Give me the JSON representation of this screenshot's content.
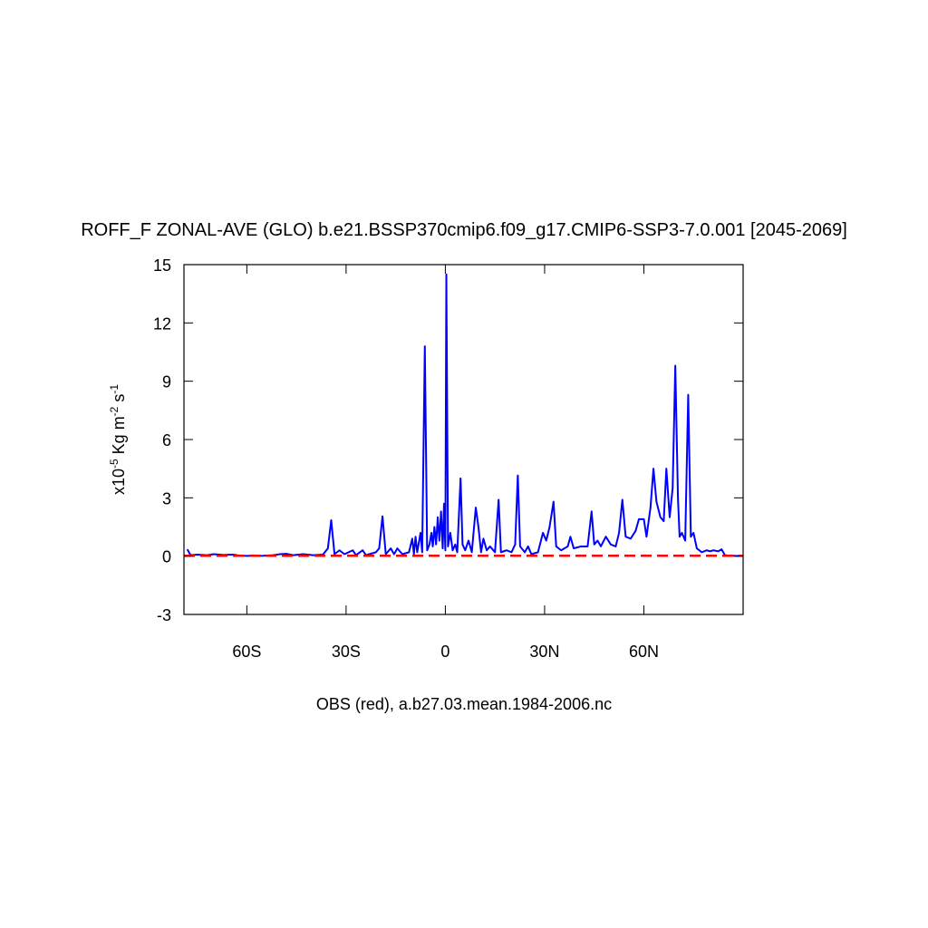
{
  "chart_data": {
    "type": "line",
    "title": "ROFF_F ZONAL-AVE (GLO) b.e21.BSSP370cmip6.f09_g17.CMIP6-SSP3-7.0.001 [2045-2069]",
    "subtitle": "OBS (red), a.b27.03.mean.1984-2006.nc",
    "ylabel": [
      "x10",
      "-5",
      " Kg m",
      "-2",
      " s",
      "-1"
    ],
    "xlim": [
      -79,
      90
    ],
    "xticks": [
      {
        "value": -60,
        "label": "60S"
      },
      {
        "value": -30,
        "label": "30S"
      },
      0,
      {
        "value": 30,
        "label": "30N"
      },
      {
        "value": 60,
        "label": "60N"
      }
    ],
    "ylim": [
      -3,
      15
    ],
    "yticks": [
      -3,
      0,
      3,
      6,
      9,
      12,
      15
    ],
    "series": [
      {
        "color": "#0000ff",
        "dash": false,
        "x": [
          -78,
          -77,
          -75,
          -72,
          -70,
          -67,
          -64,
          -62,
          -58,
          -55,
          -52,
          -50,
          -48,
          -46,
          -43,
          -40,
          -37,
          -35.5,
          -34.5,
          -33.5,
          -32,
          -30.5,
          -28,
          -27,
          -25,
          -24,
          -21,
          -20,
          -19,
          -18,
          -16.5,
          -15.5,
          -14.5,
          -13,
          -11,
          -10,
          -9.5,
          -9,
          -8.5,
          -7.5,
          -7,
          -6.2,
          -5.5,
          -4.8,
          -4.2,
          -3.8,
          -3.3,
          -2.8,
          -2.3,
          -1.8,
          -1.3,
          -0.8,
          -0.4,
          0,
          0.3,
          0.8,
          1.5,
          2.2,
          3,
          3.6,
          4.6,
          5.2,
          6,
          7,
          8,
          9.2,
          10,
          10.8,
          11.5,
          12.5,
          13.5,
          15,
          16.1,
          16.8,
          18.5,
          20,
          21.1,
          21.9,
          22.6,
          24,
          25,
          26,
          28,
          29.5,
          30.5,
          31.5,
          32.7,
          33.5,
          35,
          37,
          37.8,
          38.8,
          41,
          43,
          44.2,
          45,
          46,
          47,
          48.5,
          50,
          51.5,
          52.5,
          53.5,
          54.5,
          56,
          57.5,
          58.5,
          60,
          60.8,
          62,
          62.9,
          63.8,
          65,
          66,
          66.8,
          67.8,
          68.7,
          69.5,
          70.3,
          70.8,
          71.5,
          72.5,
          73.4,
          74.2,
          75,
          76,
          77.5,
          79,
          80,
          81,
          82.5,
          83.5,
          84.5,
          86,
          90
        ],
        "values": [
          0.35,
          0.05,
          0.08,
          0.05,
          0.1,
          0.06,
          0.08,
          0.02,
          0.01,
          0.02,
          0.05,
          0.1,
          0.12,
          0.05,
          0.1,
          0.05,
          0.08,
          0.4,
          1.85,
          0.1,
          0.3,
          0.1,
          0.3,
          0.05,
          0.3,
          0.05,
          0.2,
          0.4,
          2.05,
          0.1,
          0.4,
          0.1,
          0.4,
          0.1,
          0.2,
          0.9,
          0.1,
          1.0,
          0.2,
          1.2,
          0.2,
          10.8,
          0.3,
          0.6,
          1.2,
          0.5,
          1.5,
          0.6,
          2.0,
          0.8,
          2.3,
          0.4,
          2.7,
          0.3,
          14.5,
          0.5,
          1.2,
          0.3,
          0.6,
          0.2,
          4.0,
          0.6,
          0.3,
          0.8,
          0.2,
          2.5,
          1.5,
          0.2,
          0.9,
          0.3,
          0.5,
          0.2,
          2.9,
          0.2,
          0.3,
          0.2,
          0.6,
          4.15,
          0.5,
          0.2,
          0.5,
          0.1,
          0.2,
          1.2,
          0.8,
          1.5,
          2.8,
          0.5,
          0.3,
          0.5,
          1.0,
          0.4,
          0.5,
          0.5,
          2.3,
          0.6,
          0.8,
          0.5,
          1.0,
          0.6,
          0.5,
          1.2,
          2.9,
          1.0,
          0.9,
          1.3,
          1.9,
          1.9,
          1.0,
          2.5,
          4.5,
          2.8,
          2.0,
          1.8,
          4.5,
          2.0,
          3.5,
          9.8,
          3.0,
          1.0,
          1.2,
          0.8,
          8.3,
          1.0,
          1.2,
          0.4,
          0.2,
          0.3,
          0.25,
          0.3,
          0.25,
          0.35,
          0.05,
          0.02,
          0
        ]
      },
      {
        "color": "#ff0000",
        "dash": true,
        "x": [
          -79,
          -60,
          -30,
          0,
          30,
          60,
          90
        ],
        "values": [
          0.02,
          0.02,
          0.02,
          0.02,
          0.02,
          0.02,
          0.02
        ]
      }
    ]
  }
}
